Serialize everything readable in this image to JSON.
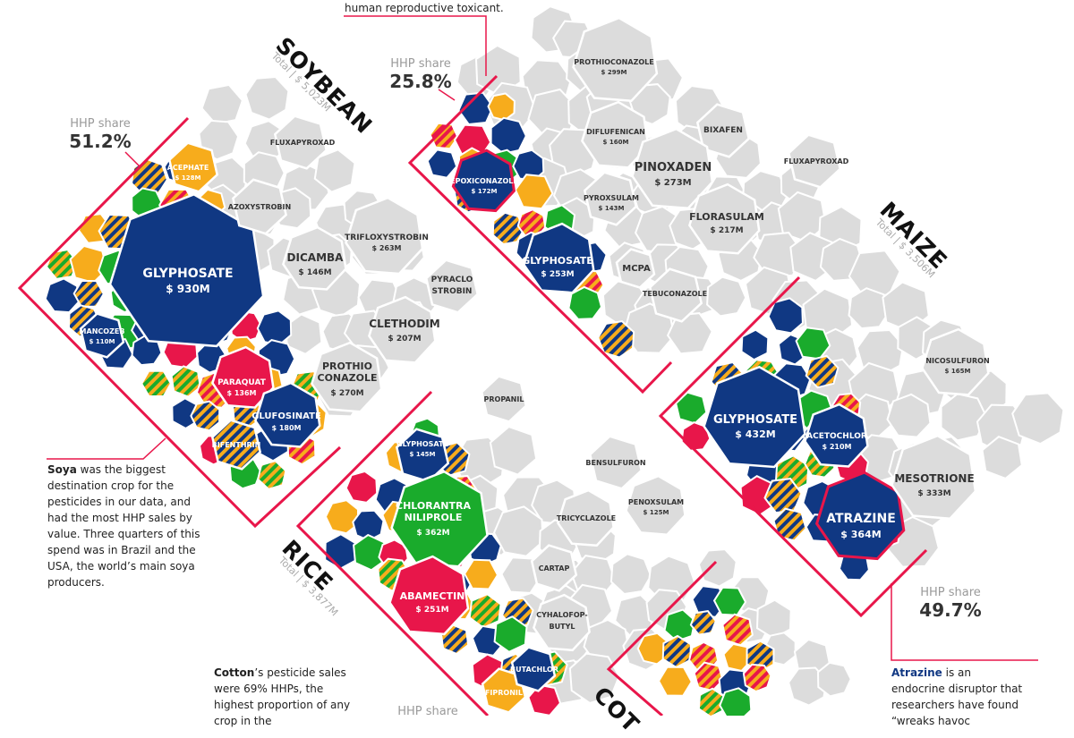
{
  "chart_data": {
    "type": "treemap",
    "title": "",
    "legend": "",
    "panels": [
      {
        "crop": "SOYBEAN",
        "total_label": "Total | $ 5,023M",
        "hhp_share_label": "HHP share",
        "hhp_share": "51.2%",
        "items": [
          {
            "name": "GLYPHOSATE",
            "value_label": "$ 930M",
            "value": 930
          },
          {
            "name": "PARAQUAT",
            "value_label": "$ 136M",
            "value": 136
          },
          {
            "name": "GLUFOSINATE",
            "value_label": "$ 180M",
            "value": 180
          },
          {
            "name": "MANCOZEB",
            "value_label": "$ 110M",
            "value": 110
          },
          {
            "name": "ACEPHATE",
            "value_label": "$ 128M",
            "value": 128
          },
          {
            "name": "BIFENTHRIN",
            "value_label": "",
            "value": null
          },
          {
            "name": "FLUXAPYROXAD",
            "value_label": "",
            "value": null
          },
          {
            "name": "AZOXYSTROBIN",
            "value_label": "",
            "value": null
          },
          {
            "name": "TRIFLOXYSTROBIN",
            "value_label": "$ 263M",
            "value": 263
          },
          {
            "name": "DICAMBA",
            "value_label": "$ 146M",
            "value": 146
          },
          {
            "name": "PYRACLO STROBIN",
            "value_label": "",
            "value": null
          },
          {
            "name": "CLETHODIM",
            "value_label": "$ 207M",
            "value": 207
          },
          {
            "name": "PROTHIO CONAZOLE",
            "value_label": "$ 270M",
            "value": 270
          }
        ]
      },
      {
        "crop": "",
        "total_label": "",
        "hhp_share_label": "HHP share",
        "hhp_share": "25.8%",
        "items": [
          {
            "name": "EPOXICONAZOLE",
            "value_label": "$ 172M",
            "value": 172
          },
          {
            "name": "GLYPHOSATE",
            "value_label": "$ 253M",
            "value": 253
          },
          {
            "name": "PROTHIOCONAZOLE",
            "value_label": "$ 299M",
            "value": 299
          },
          {
            "name": "DIFLUFENICAN",
            "value_label": "$ 160M",
            "value": 160
          },
          {
            "name": "BIXAFEN",
            "value_label": "",
            "value": null
          },
          {
            "name": "PINOXADEN",
            "value_label": "$ 273M",
            "value": 273
          },
          {
            "name": "FLUXAPYROXAD",
            "value_label": "",
            "value": null
          },
          {
            "name": "PYROXSULAM",
            "value_label": "$ 143M",
            "value": 143
          },
          {
            "name": "FLORASULAM",
            "value_label": "$ 217M",
            "value": 217
          },
          {
            "name": "MCPA",
            "value_label": "",
            "value": null
          },
          {
            "name": "TEBUCONAZOLE",
            "value_label": "",
            "value": null
          }
        ]
      },
      {
        "crop": "MAIZE",
        "total_label": "Total | $ 3,506M",
        "hhp_share_label": "HHP share",
        "hhp_share": "49.7%",
        "items": [
          {
            "name": "GLYPHOSATE",
            "value_label": "$ 432M",
            "value": 432
          },
          {
            "name": "ACETOCHLOR",
            "value_label": "$ 210M",
            "value": 210
          },
          {
            "name": "ATRAZINE",
            "value_label": "$ 364M",
            "value": 364
          },
          {
            "name": "NICOSULFURON",
            "value_label": "$ 165M",
            "value": 165
          },
          {
            "name": "MESOTRIONE",
            "value_label": "$ 333M",
            "value": 333
          }
        ]
      },
      {
        "crop": "RICE",
        "total_label": "Total | $ 3,877M",
        "hhp_share_label": "",
        "hhp_share": "",
        "items": [
          {
            "name": "GLYPHOSATE",
            "value_label": "$ 145M",
            "value": 145
          },
          {
            "name": "CHLORANTRA NILIPROLE",
            "value_label": "$ 362M",
            "value": 362
          },
          {
            "name": "ABAMECTIN",
            "value_label": "$ 251M",
            "value": 251
          },
          {
            "name": "FIPRONIL",
            "value_label": "",
            "value": null
          },
          {
            "name": "BUTACHLOR",
            "value_label": "",
            "value": null
          },
          {
            "name": "PROPANIL",
            "value_label": "",
            "value": null
          },
          {
            "name": "BENSULFURON",
            "value_label": "",
            "value": null
          },
          {
            "name": "PENOXSULAM",
            "value_label": "$ 125M",
            "value": 125
          },
          {
            "name": "TRICYCLAZOLE",
            "value_label": "",
            "value": null
          },
          {
            "name": "CARTAP",
            "value_label": "",
            "value": null
          },
          {
            "name": "CYHALOFOP- BUTYL",
            "value_label": "",
            "value": null
          }
        ]
      }
    ],
    "colors": {
      "hhp_navy": "#103883",
      "hhp_orange": "#f7ac1c",
      "hhp_green": "#1aab2c",
      "hhp_red": "#e8164a",
      "non_hhp_gray": "#dcdcdc",
      "frame_pink": "#e8164a"
    }
  },
  "annotations": {
    "top_fragment": "human reproductive toxicant.",
    "soya_bold": "Soya",
    "soya_text": " was the biggest destination crop for the pesticides in our data, and had the most HHP sales by value. Three quarters of this spend was in Brazil and the USA, the world’s main soya producers.",
    "cotton_bold": "Cotton",
    "cotton_text": "’s pesticide sales were 69% HHPs, the highest proportion of any crop in the",
    "atrazine_bold": "Atrazine",
    "atrazine_text": " is an endocrine disruptor that researchers have found “wreaks havoc",
    "bottom_share_label": "HHP share",
    "cotton_crop_fragment": "COT"
  }
}
